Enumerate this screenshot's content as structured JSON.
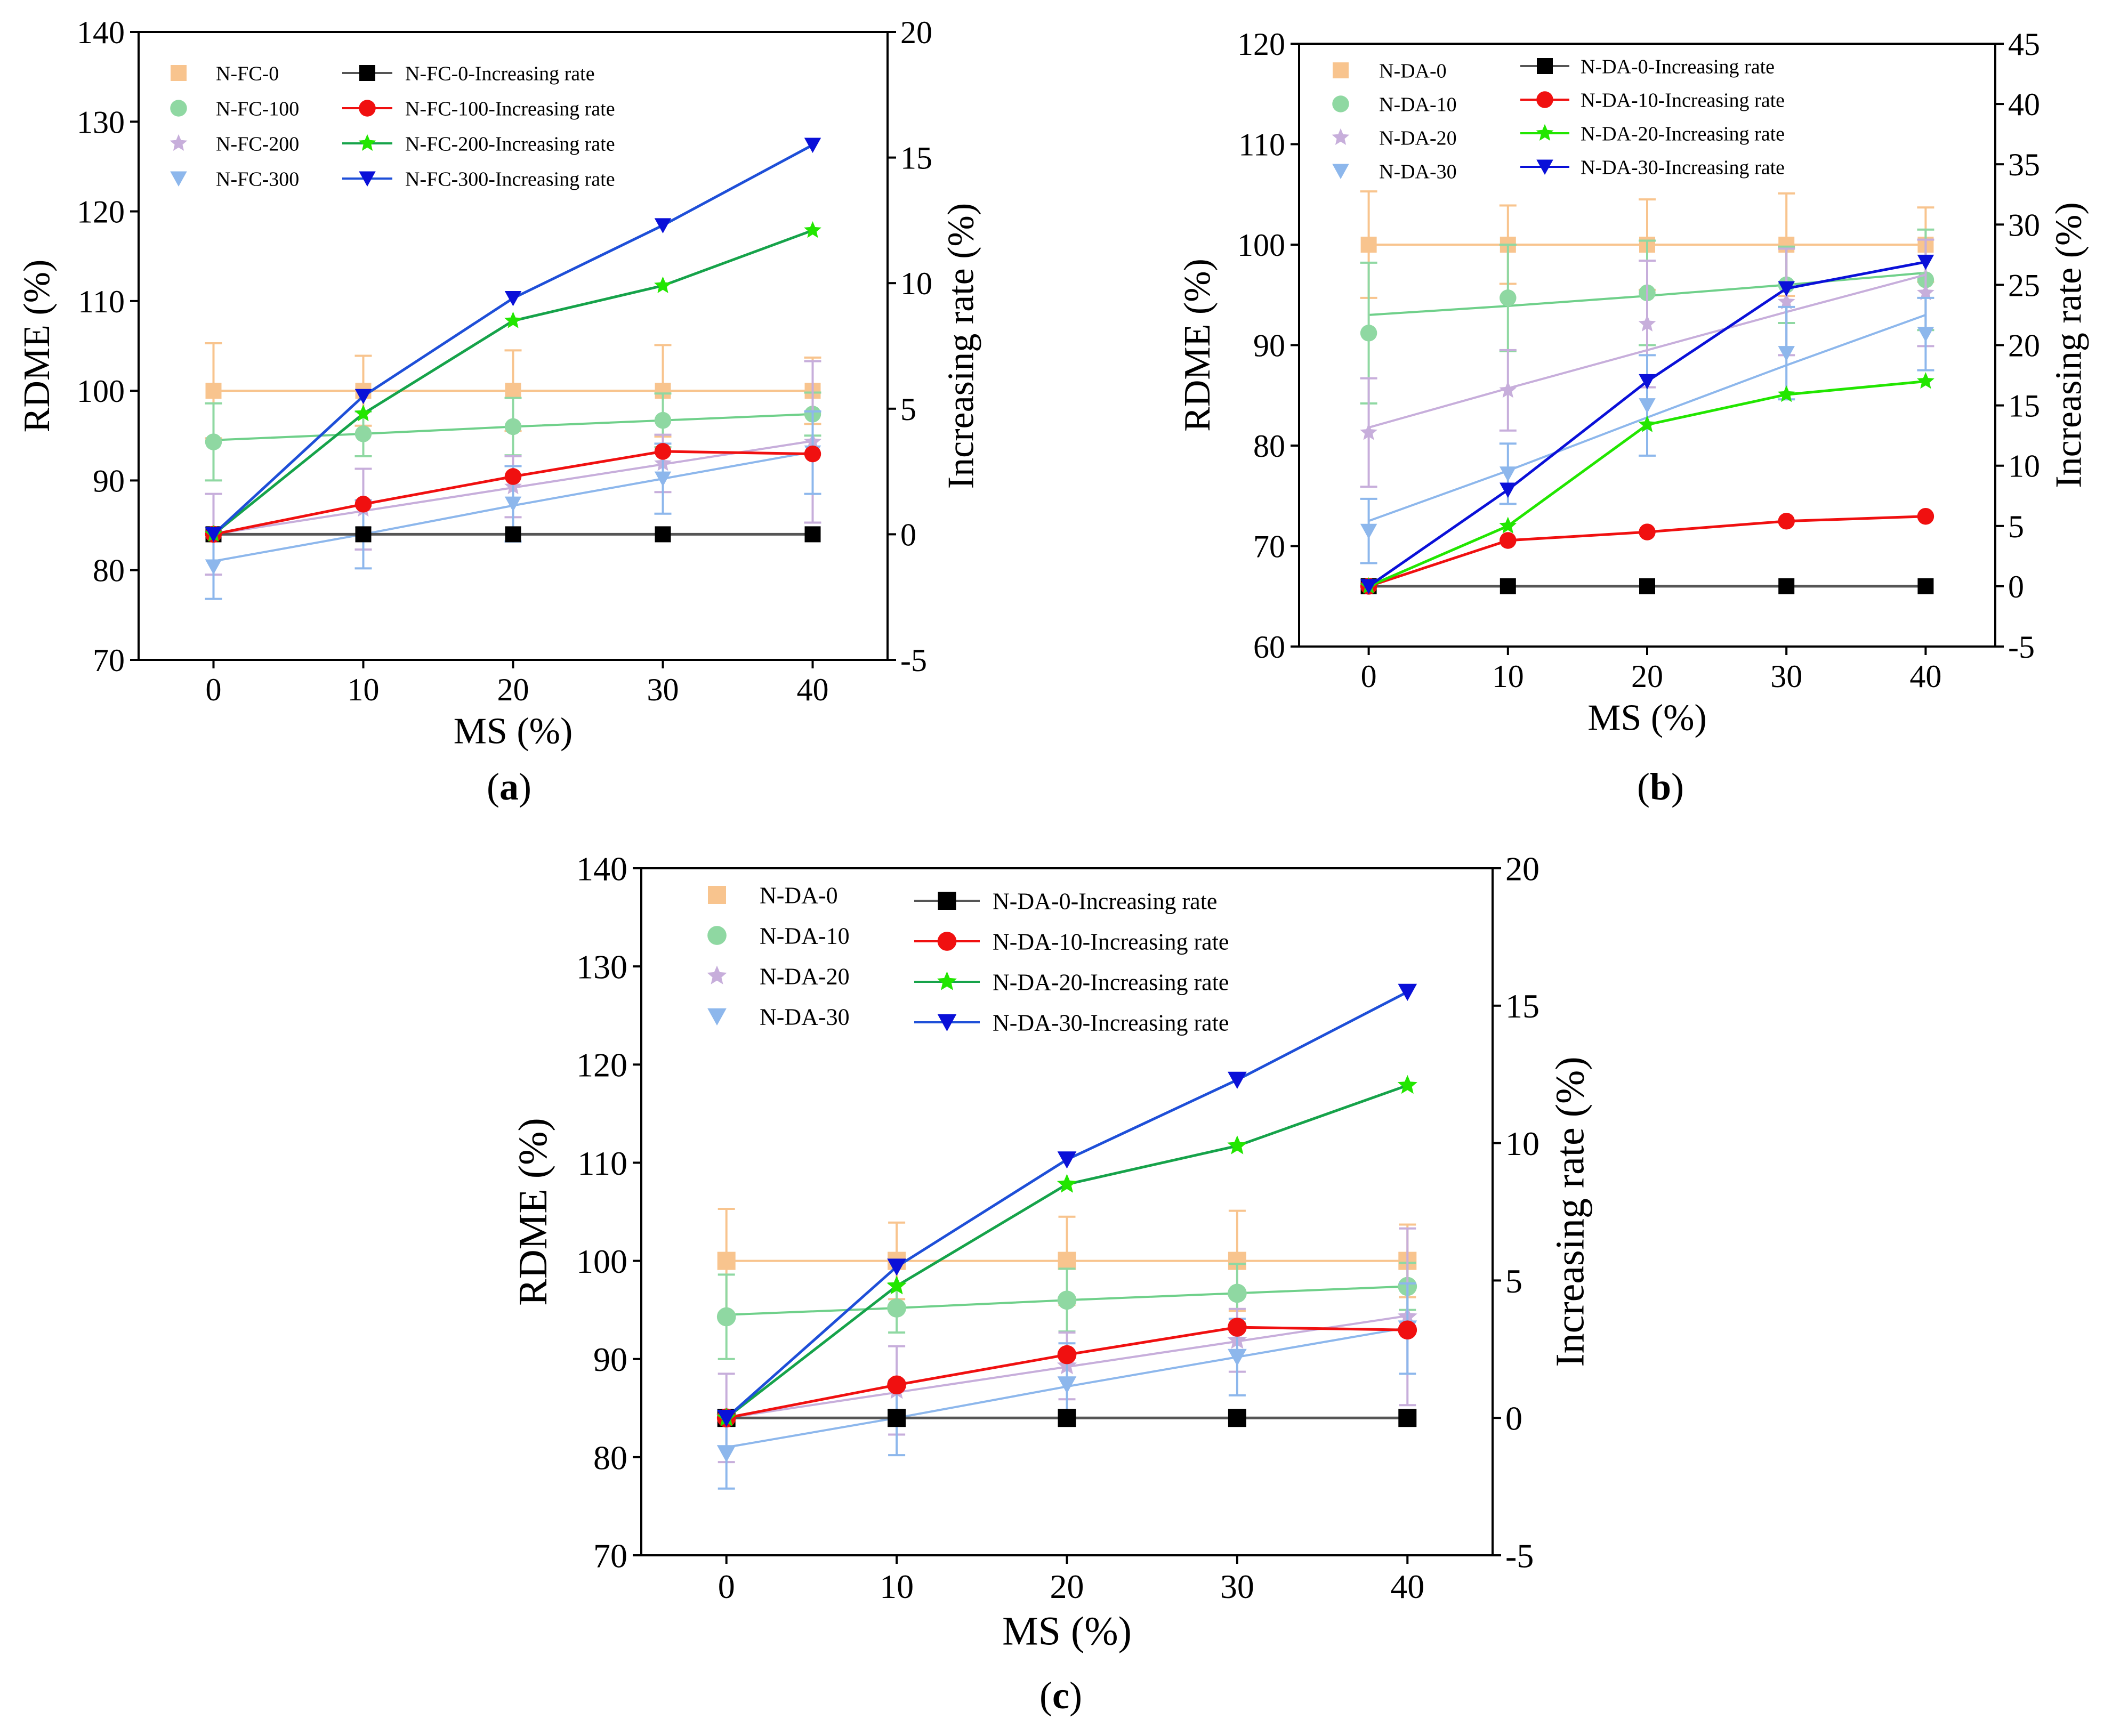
{
  "figure": {
    "colors": {
      "axis": "#000000",
      "peach": "#F8C48E",
      "green_pt": "#8FD8A2",
      "green_line": "#6FD08A",
      "lilac": "#C7AEDB",
      "lightblue": "#8DB7EC",
      "black": "#000000",
      "red": "#F01010",
      "green_rate": "#16A34A",
      "lime": "#22E600",
      "blue": "#1E4FD8",
      "navy": "#0A10D8",
      "grey_line": "#555555"
    }
  },
  "chart_data": [
    {
      "panel_label": "a",
      "type": "line",
      "xlabel": "MS (%)",
      "ylabel": "RDME (%)",
      "y2label": "Increasing rate (%)",
      "x": [
        0,
        10,
        20,
        30,
        40
      ],
      "x_ticks": [
        0,
        10,
        20,
        30,
        40
      ],
      "xlim": [
        -5,
        45
      ],
      "ylim": [
        70,
        140
      ],
      "y_ticks": [
        70,
        80,
        90,
        100,
        110,
        120,
        130,
        140
      ],
      "y2lim": [
        -5,
        20
      ],
      "y2_ticks": [
        -5,
        0,
        5,
        10,
        15,
        20
      ],
      "legend_position": "top-left",
      "rdme_series": [
        {
          "name": "N-FC-0",
          "marker": "square",
          "color_key": "peach",
          "values": [
            100,
            100,
            100,
            100,
            100
          ],
          "err": [
            5.3,
            3.9,
            4.5,
            5.1,
            3.7
          ],
          "fit": [
            100,
            100,
            100,
            100,
            100
          ]
        },
        {
          "name": "N-FC-100",
          "marker": "circle",
          "color_key": "green_pt",
          "line_color_key": "green_line",
          "values": [
            94.3,
            95.2,
            96.0,
            96.7,
            97.4
          ],
          "err": [
            4.3,
            2.5,
            3.2,
            3.0,
            2.4
          ],
          "fit": [
            94.5,
            95.2,
            96.0,
            96.7,
            97.4
          ]
        },
        {
          "name": "N-FC-200",
          "marker": "star",
          "color_key": "lilac",
          "values": [
            84.0,
            86.8,
            89.3,
            91.9,
            94.3
          ],
          "err": [
            4.5,
            4.5,
            3.4,
            3.2,
            9.0
          ],
          "fit": [
            84.0,
            86.6,
            89.2,
            91.8,
            94.4
          ]
        },
        {
          "name": "N-FC-300",
          "marker": "triangle-down",
          "color_key": "lightblue",
          "values": [
            80.4,
            84.0,
            87.4,
            90.2,
            93.1
          ],
          "err": [
            3.6,
            3.8,
            4.2,
            3.9,
            4.6
          ],
          "fit": [
            81.0,
            84.0,
            87.2,
            90.2,
            93.2
          ]
        }
      ],
      "rate_series": [
        {
          "name": "N-FC-0-Increasing rate",
          "marker": "square",
          "color_key": "black",
          "line_color_key": "grey_line",
          "values": [
            0,
            0,
            0,
            0,
            0
          ]
        },
        {
          "name": "N-FC-100-Increasing rate",
          "marker": "circle",
          "color_key": "red",
          "values": [
            0,
            1.2,
            2.3,
            3.3,
            3.2
          ]
        },
        {
          "name": "N-FC-200-Increasing rate",
          "marker": "star",
          "color_key": "lime",
          "line_color_key": "green_rate",
          "values": [
            0,
            4.8,
            8.5,
            9.9,
            12.1
          ]
        },
        {
          "name": "N-FC-300-Increasing rate",
          "marker": "triangle-down",
          "color_key": "navy",
          "line_color_key": "blue",
          "values": [
            0,
            5.5,
            9.4,
            12.3,
            15.5
          ]
        }
      ]
    },
    {
      "panel_label": "b",
      "type": "line",
      "xlabel": "MS (%)",
      "ylabel": "RDME (%)",
      "y2label": "Increasing rate (%)",
      "x": [
        0,
        10,
        20,
        30,
        40
      ],
      "x_ticks": [
        0,
        10,
        20,
        30,
        40
      ],
      "xlim": [
        -5,
        45
      ],
      "ylim": [
        60,
        120
      ],
      "y_ticks": [
        60,
        70,
        80,
        90,
        100,
        110,
        120
      ],
      "y2lim": [
        -5,
        45
      ],
      "y2_ticks": [
        -5,
        0,
        5,
        10,
        15,
        20,
        25,
        30,
        35,
        40,
        45
      ],
      "legend_position": "top-left",
      "rdme_series": [
        {
          "name": "N-DA-0",
          "marker": "square",
          "color_key": "peach",
          "values": [
            100,
            100,
            100,
            100,
            100
          ],
          "err": [
            5.3,
            3.9,
            4.5,
            5.1,
            3.7
          ],
          "fit": [
            100,
            100,
            100,
            100,
            100
          ]
        },
        {
          "name": "N-DA-10",
          "marker": "circle",
          "color_key": "green_pt",
          "line_color_key": "green_line",
          "values": [
            91.2,
            94.7,
            95.2,
            96.0,
            96.5
          ],
          "err": [
            7.0,
            5.3,
            5.2,
            3.8,
            5.0
          ],
          "fit": [
            93.0,
            93.9,
            94.9,
            96.0,
            97.2
          ]
        },
        {
          "name": "N-DA-20",
          "marker": "star",
          "color_key": "lilac",
          "values": [
            81.3,
            85.5,
            92.1,
            94.3,
            95.2
          ],
          "err": [
            5.4,
            4.0,
            6.3,
            5.3,
            5.3
          ],
          "fit": [
            81.8,
            85.7,
            89.5,
            93.3,
            97.0
          ]
        },
        {
          "name": "N-DA-30",
          "marker": "triangle-down",
          "color_key": "lightblue",
          "values": [
            71.5,
            77.2,
            84.0,
            89.2,
            91.1
          ],
          "err": [
            3.2,
            3.0,
            5.0,
            4.6,
            3.6
          ],
          "fit": [
            72.5,
            77.5,
            82.8,
            88.0,
            93.0
          ]
        }
      ],
      "rate_series": [
        {
          "name": "N-DA-0-Increasing rate",
          "marker": "square",
          "color_key": "black",
          "line_color_key": "grey_line",
          "values": [
            0,
            0,
            0,
            0,
            0
          ]
        },
        {
          "name": "N-DA-10-Increasing rate",
          "marker": "circle",
          "color_key": "red",
          "values": [
            0,
            3.8,
            4.5,
            5.4,
            5.8
          ]
        },
        {
          "name": "N-DA-20-Increasing rate",
          "marker": "star",
          "color_key": "lime",
          "values": [
            0,
            5.0,
            13.4,
            15.9,
            17.0
          ]
        },
        {
          "name": "N-DA-30-Increasing rate",
          "marker": "triangle-down",
          "color_key": "navy",
          "values": [
            0,
            8.0,
            17.0,
            24.7,
            26.9
          ]
        }
      ]
    },
    {
      "panel_label": "c",
      "type": "line",
      "xlabel": "MS (%)",
      "ylabel": "RDME (%)",
      "y2label": "Increasing rate (%)",
      "x": [
        0,
        10,
        20,
        30,
        40
      ],
      "x_ticks": [
        0,
        10,
        20,
        30,
        40
      ],
      "xlim": [
        -5,
        45
      ],
      "ylim": [
        70,
        140
      ],
      "y_ticks": [
        70,
        80,
        90,
        100,
        110,
        120,
        130,
        140
      ],
      "y2lim": [
        -5,
        20
      ],
      "y2_ticks": [
        -5,
        0,
        5,
        10,
        15,
        20
      ],
      "legend_position": "top-left",
      "rdme_series": [
        {
          "name": "N-DA-0",
          "marker": "square",
          "color_key": "peach",
          "values": [
            100,
            100,
            100,
            100,
            100
          ],
          "err": [
            5.3,
            3.9,
            4.5,
            5.1,
            3.7
          ],
          "fit": [
            100,
            100,
            100,
            100,
            100
          ]
        },
        {
          "name": "N-DA-10",
          "marker": "circle",
          "color_key": "green_pt",
          "line_color_key": "green_line",
          "values": [
            94.3,
            95.2,
            96.0,
            96.7,
            97.4
          ],
          "err": [
            4.3,
            2.5,
            3.2,
            3.0,
            2.4
          ],
          "fit": [
            94.5,
            95.2,
            96.0,
            96.7,
            97.4
          ]
        },
        {
          "name": "N-DA-20",
          "marker": "star",
          "color_key": "lilac",
          "values": [
            84.0,
            86.8,
            89.3,
            91.9,
            94.3
          ],
          "err": [
            4.5,
            4.5,
            3.4,
            3.2,
            9.0
          ],
          "fit": [
            84.0,
            86.6,
            89.2,
            91.8,
            94.4
          ]
        },
        {
          "name": "N-DA-30",
          "marker": "triangle-down",
          "color_key": "lightblue",
          "values": [
            80.4,
            84.0,
            87.4,
            90.2,
            93.1
          ],
          "err": [
            3.6,
            3.8,
            4.2,
            3.9,
            4.6
          ],
          "fit": [
            81.0,
            84.0,
            87.2,
            90.2,
            93.2
          ]
        }
      ],
      "rate_series": [
        {
          "name": "N-DA-0-Increasing rate",
          "marker": "square",
          "color_key": "black",
          "line_color_key": "grey_line",
          "values": [
            0,
            0,
            0,
            0,
            0
          ]
        },
        {
          "name": "N-DA-10-Increasing rate",
          "marker": "circle",
          "color_key": "red",
          "values": [
            0,
            1.2,
            2.3,
            3.3,
            3.2
          ]
        },
        {
          "name": "N-DA-20-Increasing rate",
          "marker": "star",
          "color_key": "lime",
          "line_color_key": "green_rate",
          "values": [
            0,
            4.8,
            8.5,
            9.9,
            12.1
          ]
        },
        {
          "name": "N-DA-30-Increasing rate",
          "marker": "triangle-down",
          "color_key": "navy",
          "line_color_key": "blue",
          "values": [
            0,
            5.5,
            9.4,
            12.3,
            15.5
          ]
        }
      ]
    }
  ]
}
